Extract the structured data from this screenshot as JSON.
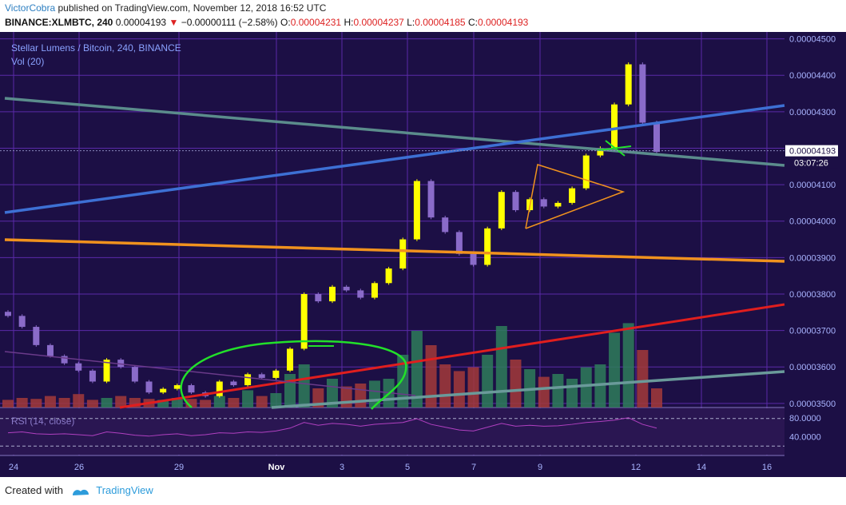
{
  "header": {
    "author": "VictorCobra",
    "published_text": "published on TradingView.com, November 12, 2018 16:52 UTC",
    "symbol": "BINANCE:XLMBTC, 240",
    "last": "0.00004193",
    "change_arrow": "▼",
    "change": "−0.00000111 (−2.58%)",
    "o_label": "O:",
    "o": "0.00004231",
    "h_label": "H:",
    "h": "0.00004237",
    "l_label": "L:",
    "l": "0.00004185",
    "c_label": "C:",
    "c": "0.00004193"
  },
  "chart_data": {
    "type": "candlestick",
    "title": "Stellar Lumens / Bitcoin, 240, BINANCE",
    "volume_label": "Vol (20)",
    "rsi_label": "RSI (14, close)",
    "price_axis_ticks": [
      "0.00004500",
      "0.00004400",
      "0.00004300",
      "0.00004200",
      "0.00004100",
      "0.00004000",
      "0.00003900",
      "0.00003800",
      "0.00003700",
      "0.00003600",
      "0.00003500"
    ],
    "price_tick_values": [
      4.5e-05,
      4.4e-05,
      4.3e-05,
      4.2e-05,
      4.1e-05,
      4e-05,
      3.9e-05,
      3.8e-05,
      3.7e-05,
      3.6e-05,
      3.5e-05
    ],
    "ylim": [
      3.48e-05,
      4.51e-05
    ],
    "current_price": "0.00004193",
    "countdown": "03:07:26",
    "rsi_ticks": [
      "80.0000",
      "40.0000"
    ],
    "x_ticks": [
      "24",
      "26",
      "29",
      "Nov",
      "3",
      "5",
      "7",
      "9",
      "12",
      "14",
      "16"
    ],
    "colors": {
      "up": "#ffff00",
      "down": "#8a6bc9",
      "grid": "#5a2aa8",
      "bg": "#1c0f45"
    },
    "price_path": [
      3.74e-05,
      3.71e-05,
      3.66e-05,
      3.63e-05,
      3.61e-05,
      3.59e-05,
      3.56e-05,
      3.62e-05,
      3.6e-05,
      3.56e-05,
      3.53e-05,
      3.54e-05,
      3.55e-05,
      3.53e-05,
      3.52e-05,
      3.56e-05,
      3.55e-05,
      3.58e-05,
      3.57e-05,
      3.59e-05,
      3.65e-05,
      3.8e-05,
      3.78e-05,
      3.82e-05,
      3.81e-05,
      3.79e-05,
      3.83e-05,
      3.87e-05,
      3.95e-05,
      4.11e-05,
      4.01e-05,
      3.97e-05,
      3.91e-05,
      3.88e-05,
      3.98e-05,
      4.08e-05,
      4.03e-05,
      4.06e-05,
      4.04e-05,
      4.05e-05,
      4.09e-05,
      4.18e-05,
      4.2e-05,
      4.32e-05,
      4.43e-05,
      4.27e-05,
      4.19e-05
    ],
    "volume": [
      0.08,
      0.1,
      0.09,
      0.12,
      0.1,
      0.14,
      0.08,
      0.1,
      0.12,
      0.1,
      0.09,
      0.08,
      0.1,
      0.09,
      0.08,
      0.12,
      0.1,
      0.18,
      0.12,
      0.15,
      0.35,
      0.45,
      0.2,
      0.3,
      0.22,
      0.25,
      0.28,
      0.3,
      0.55,
      0.8,
      0.65,
      0.45,
      0.38,
      0.42,
      0.55,
      0.85,
      0.5,
      0.4,
      0.32,
      0.35,
      0.3,
      0.42,
      0.45,
      0.78,
      0.88,
      0.6,
      0.2
    ],
    "rsi": [
      48,
      50,
      46,
      45,
      46,
      44,
      42,
      50,
      47,
      43,
      41,
      44,
      46,
      42,
      44,
      48,
      47,
      50,
      49,
      52,
      58,
      70,
      64,
      68,
      66,
      62,
      66,
      68,
      70,
      78,
      66,
      60,
      54,
      52,
      60,
      68,
      62,
      64,
      62,
      63,
      66,
      70,
      72,
      75,
      80,
      66,
      58
    ]
  },
  "footer": {
    "created_with": "Created with",
    "brand": "TradingView"
  }
}
